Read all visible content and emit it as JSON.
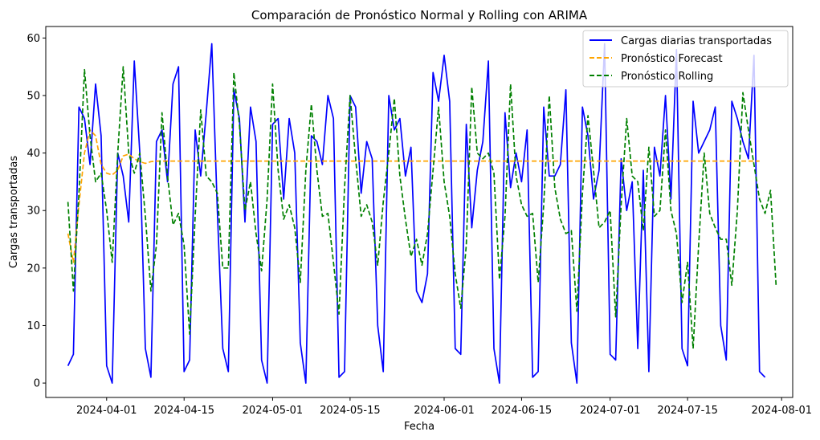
{
  "chart_data": {
    "type": "line",
    "title": "Comparación de Pronóstico Normal y Rolling con ARIMA",
    "xlabel": "Fecha",
    "ylabel": "Cargas transportadas",
    "x_start": "2024-03-25",
    "x_step_days": 1,
    "xlim": [
      "2024-03-21",
      "2024-08-03"
    ],
    "ylim": [
      -2.5,
      62
    ],
    "x_ticks": [
      "2024-04-01",
      "2024-04-15",
      "2024-05-01",
      "2024-05-15",
      "2024-06-01",
      "2024-06-15",
      "2024-07-01",
      "2024-07-15",
      "2024-08-01"
    ],
    "y_ticks": [
      0,
      10,
      20,
      30,
      40,
      50,
      60
    ],
    "grid": false,
    "legend_position": "top-right",
    "series": [
      {
        "name": "Cargas diarias transportadas",
        "color": "#0000ff",
        "style": "solid",
        "values": [
          3,
          5,
          48,
          46,
          38,
          52,
          43,
          3,
          0,
          40,
          36,
          28,
          56,
          40,
          6,
          1,
          42,
          44,
          35,
          52,
          55,
          2,
          4,
          44,
          36,
          47,
          59,
          30,
          6,
          2,
          51,
          46,
          28,
          48,
          42,
          4,
          0,
          45,
          46,
          32,
          46,
          40,
          7,
          0,
          43,
          42,
          38,
          50,
          46,
          1,
          2,
          50,
          48,
          33,
          42,
          39,
          10,
          2,
          50,
          44,
          46,
          36,
          41,
          16,
          14,
          19,
          54,
          49,
          57,
          49,
          6,
          5,
          45,
          27,
          37,
          42,
          56,
          6,
          0,
          47,
          34,
          40,
          35,
          44,
          1,
          2,
          48,
          36,
          36,
          38,
          51,
          7,
          0,
          48,
          43,
          32,
          37,
          59,
          5,
          4,
          39,
          30,
          35,
          6,
          37,
          2,
          41,
          36,
          50,
          32,
          58,
          6,
          3,
          49,
          40,
          42,
          44,
          48,
          10,
          4,
          49,
          46,
          42,
          39,
          57,
          2,
          1
        ]
      },
      {
        "name": "Pronóstico Forecast",
        "color": "#ffa500",
        "style": "dashed",
        "values": [
          26,
          21,
          31,
          40,
          44,
          43,
          38,
          36.5,
          36.2,
          37,
          39.5,
          39.8,
          39,
          38.5,
          38.2,
          38.5,
          38.6,
          38.6,
          38.6,
          38.6,
          38.6,
          38.6,
          38.6,
          38.6,
          38.6,
          38.6,
          38.6,
          38.6,
          38.6,
          38.6,
          38.6,
          38.6,
          38.6,
          38.6,
          38.6,
          38.6,
          38.6,
          38.6,
          38.6,
          38.6,
          38.6,
          38.6,
          38.6,
          38.6,
          38.6,
          38.6,
          38.6,
          38.6,
          38.6,
          38.6,
          38.6,
          38.6,
          38.6,
          38.6,
          38.6,
          38.6,
          38.6,
          38.6,
          38.6,
          38.6,
          38.6,
          38.6,
          38.6,
          38.6,
          38.6,
          38.6,
          38.6,
          38.6,
          38.6,
          38.6,
          38.6,
          38.6,
          38.6,
          38.6,
          38.6,
          38.6,
          38.6,
          38.6,
          38.6,
          38.6,
          38.6,
          38.6,
          38.6,
          38.6,
          38.6,
          38.6,
          38.6,
          38.6,
          38.6,
          38.6,
          38.6,
          38.6,
          38.6,
          38.6,
          38.6,
          38.6,
          38.6,
          38.6,
          38.6,
          38.6,
          38.6,
          38.6,
          38.6,
          38.6,
          38.6,
          38.6,
          38.6,
          38.6,
          38.6,
          38.6,
          38.6,
          38.6,
          38.6,
          38.6,
          38.6,
          38.6,
          38.6,
          38.6,
          38.6,
          38.6,
          38.6,
          38.6,
          38.6,
          38.6,
          38.6,
          38.6
        ]
      },
      {
        "name": "Pronóstico Rolling",
        "color": "#008000",
        "style": "dashed",
        "values": [
          31.5,
          16,
          33,
          54.5,
          43,
          35,
          36.5,
          30,
          21,
          40,
          55,
          40,
          36.5,
          40,
          29,
          16,
          24,
          47,
          36,
          27.5,
          29.5,
          24,
          8.5,
          29,
          47.5,
          36,
          35,
          33,
          20,
          20,
          54,
          45,
          30,
          35,
          26,
          19.5,
          32,
          52,
          37,
          28.5,
          31,
          27,
          17.5,
          37,
          48.5,
          37,
          29,
          29.5,
          21,
          12,
          34,
          50,
          39,
          29,
          31,
          28,
          20.5,
          31.5,
          40,
          49.5,
          36,
          28.5,
          22,
          25,
          20.5,
          26,
          37,
          48,
          35,
          29,
          19,
          13,
          24,
          51.5,
          40,
          39,
          40,
          36.5,
          18,
          29,
          52,
          36,
          31,
          29,
          29.5,
          17.5,
          31,
          50,
          34,
          28.5,
          26,
          26.5,
          12.5,
          33,
          46.5,
          37,
          27,
          28,
          30,
          11.5,
          31,
          46,
          36,
          35,
          26.5,
          41,
          29,
          30,
          44,
          30,
          26,
          14,
          21,
          6,
          24,
          40,
          29.5,
          27,
          25,
          25,
          17,
          30,
          50.5,
          44,
          38,
          32,
          29.5,
          33.5,
          17
        ]
      }
    ]
  }
}
